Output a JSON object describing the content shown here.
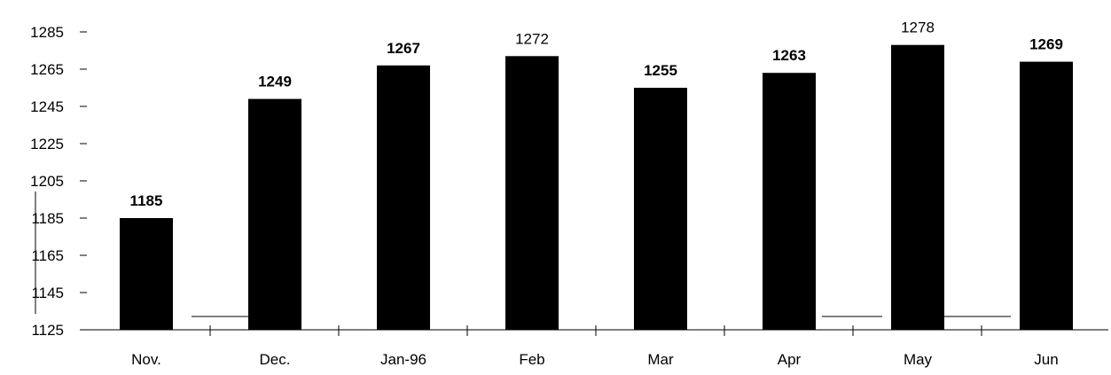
{
  "chart_data": {
    "type": "bar",
    "title": "",
    "xlabel": "",
    "ylabel": "",
    "categories": [
      "Nov.",
      "Dec.",
      "Jan-96",
      "Feb",
      "Mar",
      "Apr",
      "May",
      "Jun"
    ],
    "values": [
      1185,
      1249,
      1267,
      1272,
      1255,
      1263,
      1278,
      1269
    ],
    "data_labels": [
      "1185",
      "1249",
      "1267",
      "1272",
      "1255",
      "1263",
      "1278",
      "1269"
    ],
    "y_ticks": [
      "1125",
      "1145",
      "1165",
      "1185",
      "1205",
      "1225",
      "1245",
      "1265",
      "1285"
    ],
    "ylim": [
      1125,
      1285
    ],
    "grid": false,
    "legend": "none",
    "bar_color": "#000000"
  }
}
